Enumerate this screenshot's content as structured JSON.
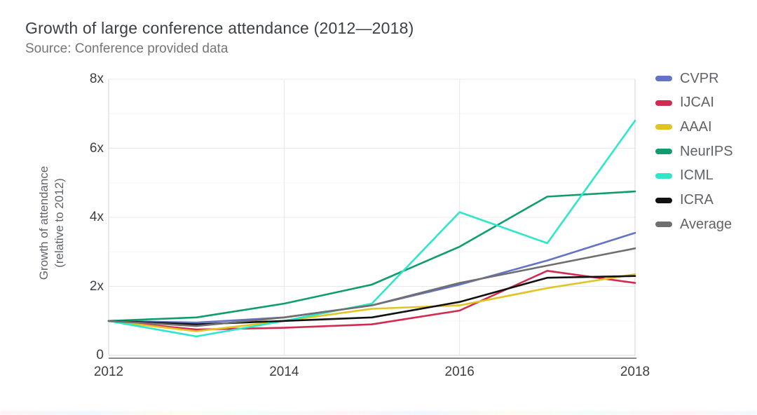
{
  "header": {
    "title": "Growth of large conference attendance (2012—2018)",
    "subtitle": "Source: Conference provided data"
  },
  "y_axis": {
    "title_line1": "Growth of attendance",
    "title_line2": "(relative to 2012)",
    "tick_labels": [
      "0",
      "2x",
      "4x",
      "6x",
      "8x"
    ],
    "tick_values": [
      0,
      2,
      4,
      6,
      8
    ]
  },
  "x_axis": {
    "tick_labels": [
      "2012",
      "2014",
      "2016",
      "2018"
    ],
    "tick_values": [
      2012,
      2014,
      2016,
      2018
    ]
  },
  "palette": {
    "grid_major": "#e8e8e8",
    "grid_minor": "#f5f5f5",
    "plot_border": "#d6d6d6",
    "axis_line": "#8c8c8c",
    "title_color": "#3c4043",
    "subtitle_color": "#757575",
    "tick_color": "#3c4043",
    "legend_text": "#5f6368"
  },
  "chart_data": {
    "type": "line",
    "title": "Growth of large conference attendance (2012—2018)",
    "subtitle": "Source: Conference provided data",
    "xlabel": "",
    "ylabel": "Growth of attendance (relative to 2012)",
    "x": [
      2012,
      2013,
      2014,
      2015,
      2016,
      2017,
      2018
    ],
    "xlim": [
      2012,
      2018
    ],
    "ylim": [
      0,
      8
    ],
    "grid": true,
    "legend_position": "right",
    "series": [
      {
        "name": "CVPR",
        "color": "#6472c8",
        "values": [
          1.0,
          0.95,
          1.1,
          1.45,
          2.05,
          2.75,
          3.55
        ]
      },
      {
        "name": "IJCAI",
        "color": "#d42a50",
        "values": [
          1.0,
          0.75,
          0.8,
          0.9,
          1.3,
          2.45,
          2.1
        ]
      },
      {
        "name": "AAAI",
        "color": "#e2c324",
        "values": [
          1.0,
          0.7,
          1.0,
          1.35,
          1.45,
          1.95,
          2.35
        ]
      },
      {
        "name": "NeurIPS",
        "color": "#0f9d70",
        "values": [
          1.0,
          1.1,
          1.5,
          2.05,
          3.15,
          4.6,
          4.75
        ]
      },
      {
        "name": "ICML",
        "color": "#2de8c8",
        "values": [
          1.0,
          0.55,
          1.0,
          1.5,
          4.15,
          3.25,
          6.8
        ]
      },
      {
        "name": "ICRA",
        "color": "#111111",
        "values": [
          1.0,
          0.9,
          1.0,
          1.1,
          1.55,
          2.25,
          2.3
        ]
      },
      {
        "name": "Average",
        "color": "#6f6f6f",
        "values": [
          1.0,
          0.85,
          1.1,
          1.45,
          2.1,
          2.6,
          3.1
        ]
      }
    ]
  }
}
